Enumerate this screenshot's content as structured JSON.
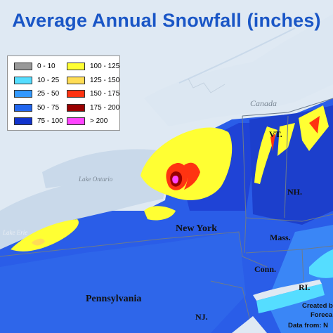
{
  "title": "Average Annual Snowfall (inches)",
  "legend": [
    {
      "label": "0 - 10",
      "color": "#999999"
    },
    {
      "label": "10 - 25",
      "color": "#55ddff"
    },
    {
      "label": "25 - 50",
      "color": "#3399ff"
    },
    {
      "label": "50 - 75",
      "color": "#2266ee"
    },
    {
      "label": "75 - 100",
      "color": "#1133cc"
    },
    {
      "label": "100 - 125",
      "color": "#ffff33"
    },
    {
      "label": "125 - 150",
      "color": "#ffdd55"
    },
    {
      "label": "150 - 175",
      "color": "#ff3311"
    },
    {
      "label": "175 - 200",
      "color": "#990000"
    },
    {
      "label": "> 200",
      "color": "#ff44ff"
    }
  ],
  "places": {
    "canada": "Canada",
    "lake_ontario": "Lake Ontario",
    "lake_erie": "Lake Erie",
    "new_york": "New York",
    "pennsylvania": "Pennsylvania",
    "vt": "VT.",
    "nh": "NH.",
    "mass": "Mass.",
    "conn": "Conn.",
    "ri": "RI.",
    "nj": "NJ."
  },
  "credit": {
    "line1": "Created b",
    "line2": "Foreca",
    "line3": "Data from:  N"
  }
}
